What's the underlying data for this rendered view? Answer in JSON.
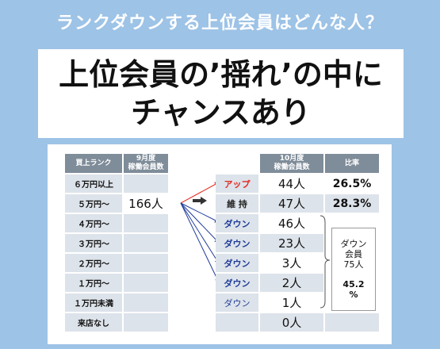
{
  "header": {
    "question": "ランクダウンする上位会員はどんな人？"
  },
  "title": {
    "line1": "上位会員の’揺れ’の中に",
    "line2": "チャンスあり"
  },
  "left_table": {
    "col_rank": "買上ランク",
    "col_sept": "9月度\n稼働会員数",
    "ranks": [
      "６万円以上",
      "５万円～",
      "４万円～",
      "３万円～",
      "２万円～",
      "１万円～",
      "１万円未満",
      "来店なし"
    ],
    "sept_count": "166人"
  },
  "right_table": {
    "col_oct": "10月度\n稼働会員数",
    "col_ratio": "比率",
    "rows": [
      {
        "label": "アップ",
        "count": "44人",
        "ratio": "26.5%"
      },
      {
        "label": "維 持",
        "count": "47人",
        "ratio": "28.3%"
      },
      {
        "label": "ダウン",
        "count": "46人"
      },
      {
        "label": "ダウン",
        "count": "23人"
      },
      {
        "label": "ダウン",
        "count": "3人"
      },
      {
        "label": "ダウン",
        "count": "2人"
      },
      {
        "label": "ダウン",
        "count": "1人"
      },
      {
        "label": "",
        "count": "0人"
      }
    ],
    "group": {
      "line1": "ダウン",
      "line2": "会員",
      "line3": "75人",
      "pct1": "45.2",
      "pct2": "%"
    }
  },
  "colors": {
    "up": "#e3261d",
    "down": "#1f3c9a",
    "header": "#7f8c99",
    "background": "#9dc3e6"
  }
}
